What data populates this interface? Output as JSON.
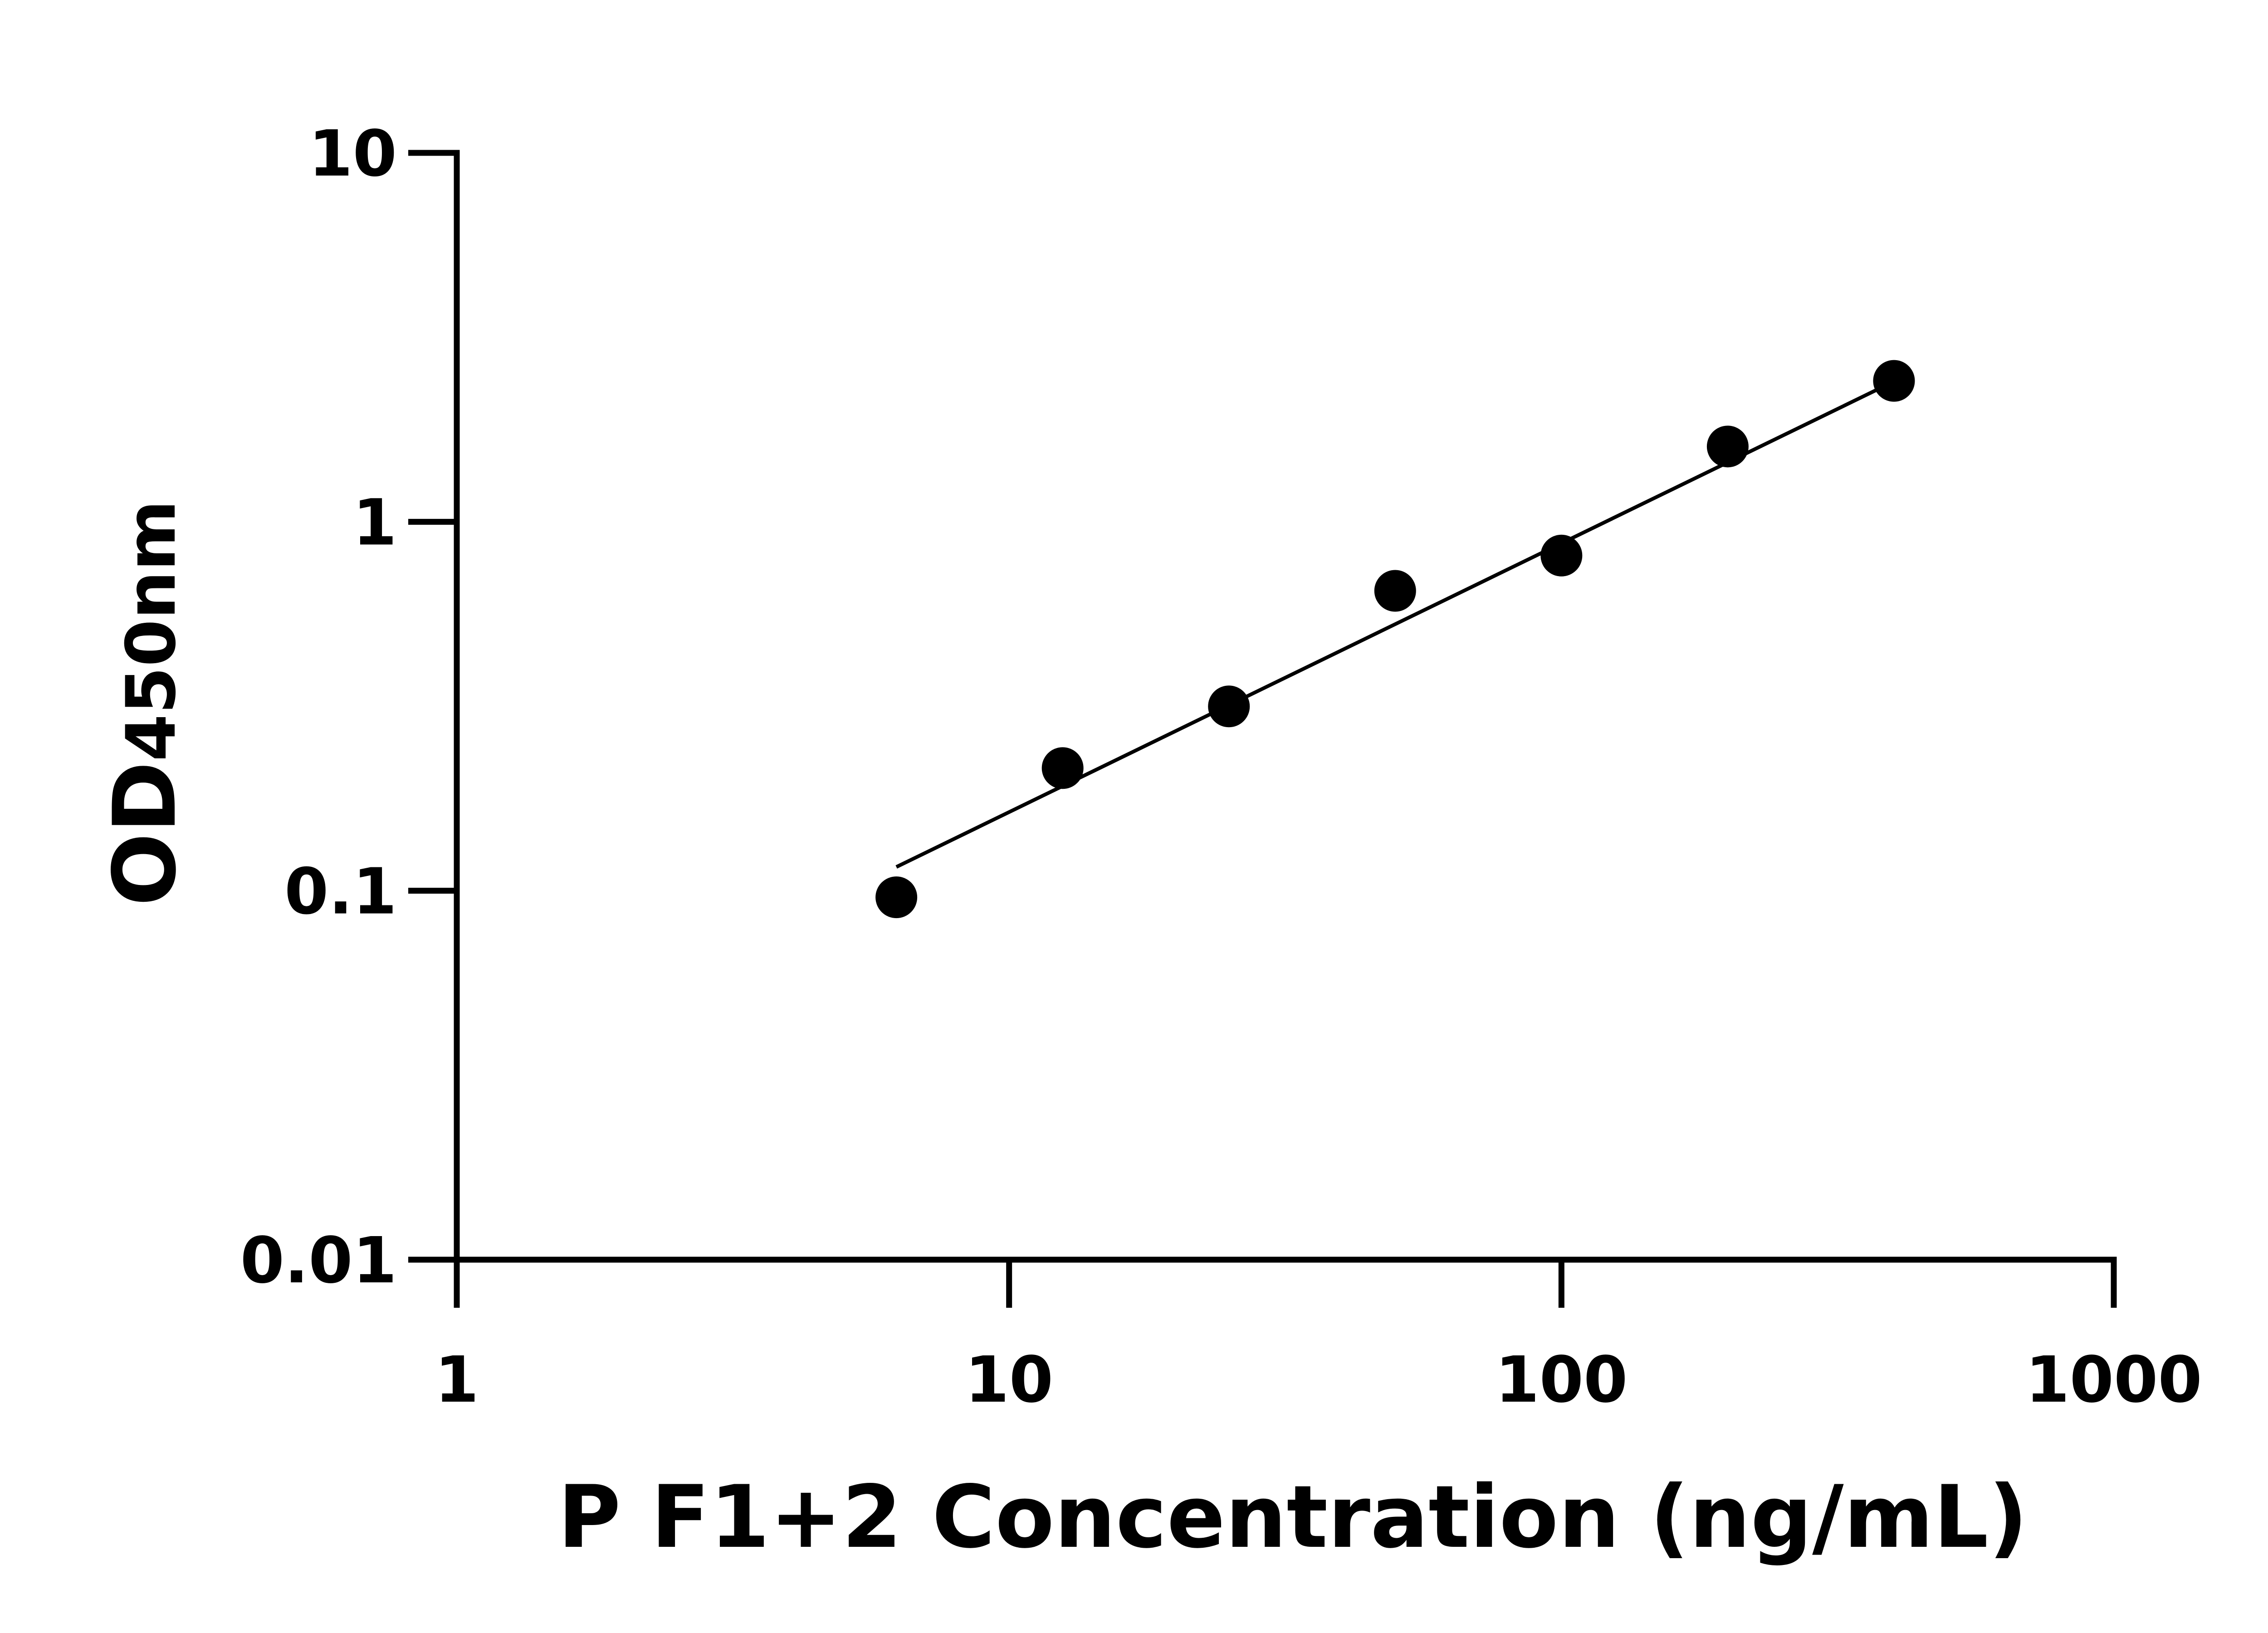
{
  "chart_data": {
    "type": "scatter",
    "title": "",
    "xlabel": "P F1+2 Concentration (ng/mL)",
    "ylabel_main": "OD",
    "ylabel_sub": "450nm",
    "x_scale": "log",
    "y_scale": "log",
    "xlim": [
      1,
      1000
    ],
    "ylim": [
      0.01,
      10
    ],
    "x_ticks": [
      "1",
      "10",
      "100",
      "1000"
    ],
    "y_ticks": [
      "0.01",
      "0.1",
      "1",
      "10"
    ],
    "grid": false,
    "legend": "none",
    "points": {
      "x": [
        6.25,
        12.5,
        25,
        50,
        100,
        200,
        400
      ],
      "y": [
        0.096,
        0.215,
        0.316,
        0.65,
        0.81,
        1.6,
        2.41
      ]
    },
    "fit_line": {
      "x": [
        6.25,
        377
      ],
      "y": [
        0.116,
        2.3
      ]
    },
    "colors": {
      "points": "#000000",
      "line": "#000000",
      "axes": "#000000"
    }
  }
}
